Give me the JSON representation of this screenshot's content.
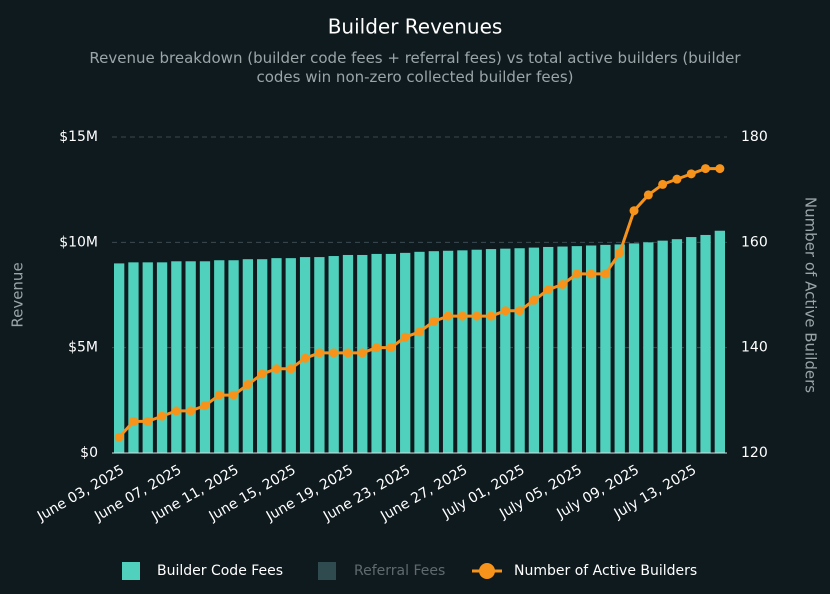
{
  "chart_data": {
    "type": "bar",
    "title": "Builder Revenues",
    "subtitle": "Revenue breakdown (builder code fees + referral fees) vs total active builders (builder codes win non-zero collected builder fees)",
    "y_label": "Revenue",
    "y2_label": "Number of Active Builders",
    "categories": [
      "June 03, 2025",
      null,
      null,
      null,
      "June 07, 2025",
      null,
      null,
      null,
      "June 11, 2025",
      null,
      null,
      null,
      "June 15, 2025",
      null,
      null,
      null,
      "June 19, 2025",
      null,
      null,
      null,
      "June 23, 2025",
      null,
      null,
      null,
      "June 27, 2025",
      null,
      null,
      null,
      "July 01, 2025",
      null,
      null,
      null,
      "July 05, 2025",
      null,
      null,
      null,
      "July 09, 2025",
      null,
      null,
      null,
      "July 13, 2025",
      null,
      null
    ],
    "series": [
      {
        "name": "Builder Code Fees",
        "type": "bar",
        "color": "#4fd1bd",
        "visible": true,
        "values": [
          9000000,
          9050000,
          9050000,
          9050000,
          9100000,
          9100000,
          9100000,
          9150000,
          9150000,
          9200000,
          9200000,
          9250000,
          9250000,
          9300000,
          9300000,
          9350000,
          9400000,
          9400000,
          9450000,
          9450000,
          9500000,
          9550000,
          9580000,
          9600000,
          9620000,
          9650000,
          9680000,
          9700000,
          9720000,
          9750000,
          9780000,
          9800000,
          9820000,
          9850000,
          9880000,
          9900000,
          9950000,
          10000000,
          10080000,
          10150000,
          10250000,
          10350000,
          10550000
        ]
      },
      {
        "name": "Referral Fees",
        "type": "bar",
        "color": "#2f4b50",
        "visible": false,
        "values": [
          null,
          null,
          null,
          null,
          null,
          null,
          null,
          null,
          null,
          null,
          null,
          null,
          null,
          null,
          null,
          null,
          null,
          null,
          null,
          null,
          null,
          null,
          null,
          null,
          null,
          null,
          null,
          null,
          null,
          null,
          null,
          null,
          null,
          null,
          null,
          null,
          null,
          null,
          null,
          null,
          null,
          null,
          null
        ]
      },
      {
        "name": "Number of Active Builders",
        "type": "line",
        "axis": "y2",
        "color": "#f7931a",
        "visible": true,
        "values": [
          123,
          126,
          126,
          127,
          128,
          128,
          129,
          131,
          131,
          133,
          135,
          136,
          136,
          138,
          139,
          139,
          139,
          139,
          140,
          140,
          142,
          143,
          145,
          146,
          146,
          146,
          146,
          147,
          147,
          149,
          151,
          152,
          154,
          154,
          154,
          158,
          166,
          169,
          171,
          172,
          173,
          174,
          174
        ]
      }
    ],
    "ylim": [
      0,
      15000000
    ],
    "yticks": [
      {
        "value": 0,
        "label": "$0"
      },
      {
        "value": 5000000,
        "label": "$5M"
      },
      {
        "value": 10000000,
        "label": "$10M"
      },
      {
        "value": 15000000,
        "label": "$15M"
      }
    ],
    "y2lim": [
      120,
      180
    ],
    "y2ticks": [
      120,
      140,
      160,
      180
    ],
    "grid": true,
    "legend": "bottom"
  }
}
